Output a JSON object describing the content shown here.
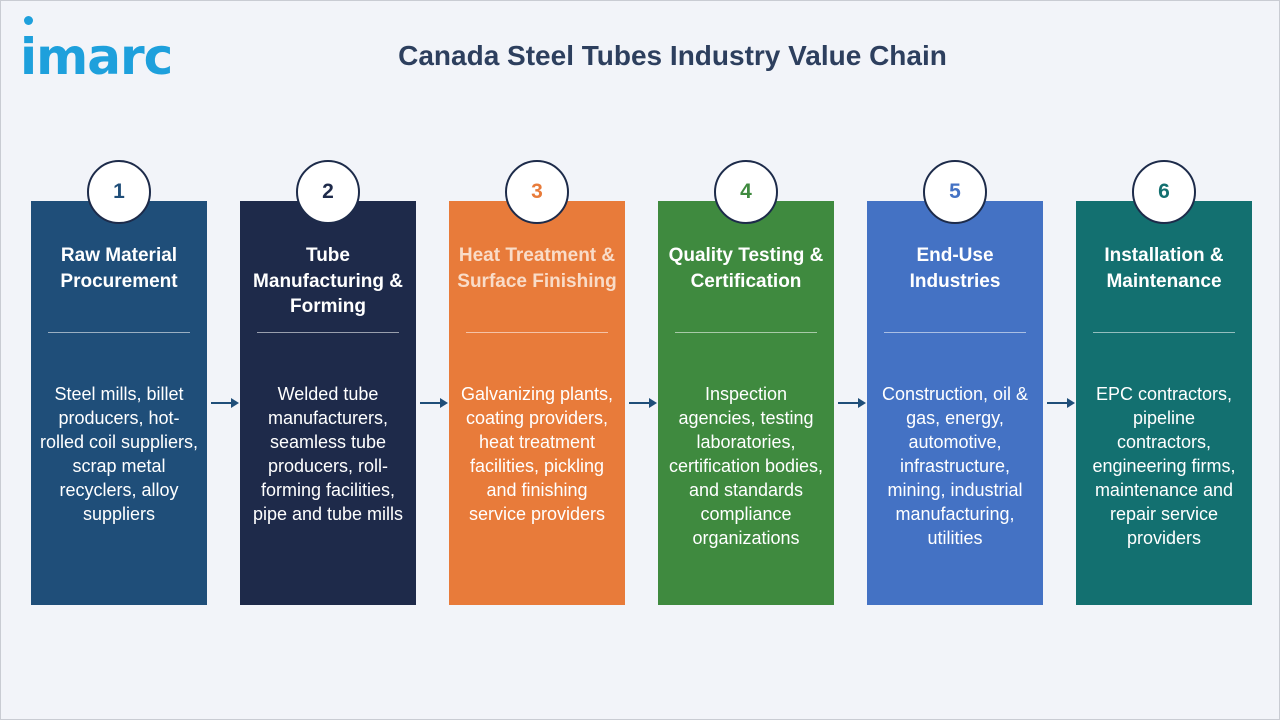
{
  "logo": {
    "text": "imarc"
  },
  "title": "Canada Steel Tubes Industry Value Chain",
  "stages": [
    {
      "number": "1",
      "title": "Raw Material Procurement",
      "description": "Steel mills, billet producers, hot-rolled coil suppliers, scrap metal recyclers, alloy suppliers",
      "color": "#1f4e79",
      "title_color": "#ffffff"
    },
    {
      "number": "2",
      "title": "Tube Manufacturing & Forming",
      "description": "Welded tube manufacturers, seamless tube producers, roll-forming facilities, pipe and tube mills",
      "color": "#1e2a4a",
      "title_color": "#ffffff"
    },
    {
      "number": "3",
      "title": "Heat Treatment & Surface Finishing",
      "description": "Galvanizing plants, coating providers, heat treatment facilities, pickling and finishing service providers",
      "color": "#e87b3a",
      "title_color": "#f9dcc8"
    },
    {
      "number": "4",
      "title": "Quality Testing & Certification",
      "description": "Inspection agencies, testing laboratories, certification bodies, and standards compliance organizations",
      "color": "#3f8a3f",
      "title_color": "#ffffff"
    },
    {
      "number": "5",
      "title": "End-Use Industries",
      "description": "Construction, oil & gas, energy, automotive, infrastructure, mining, industrial manufacturing, utilities",
      "color": "#4472c4",
      "title_color": "#ffffff"
    },
    {
      "number": "6",
      "title": "Installation & Maintenance",
      "description": "EPC contractors, pipeline contractors, engineering firms, maintenance and repair service providers",
      "color": "#137070",
      "title_color": "#ffffff"
    }
  ],
  "colors": {
    "arrow": "#1f4e79",
    "badge_border": "#1d2b4a",
    "title": "#2d3f5e",
    "logo": "#1ea0dc"
  }
}
